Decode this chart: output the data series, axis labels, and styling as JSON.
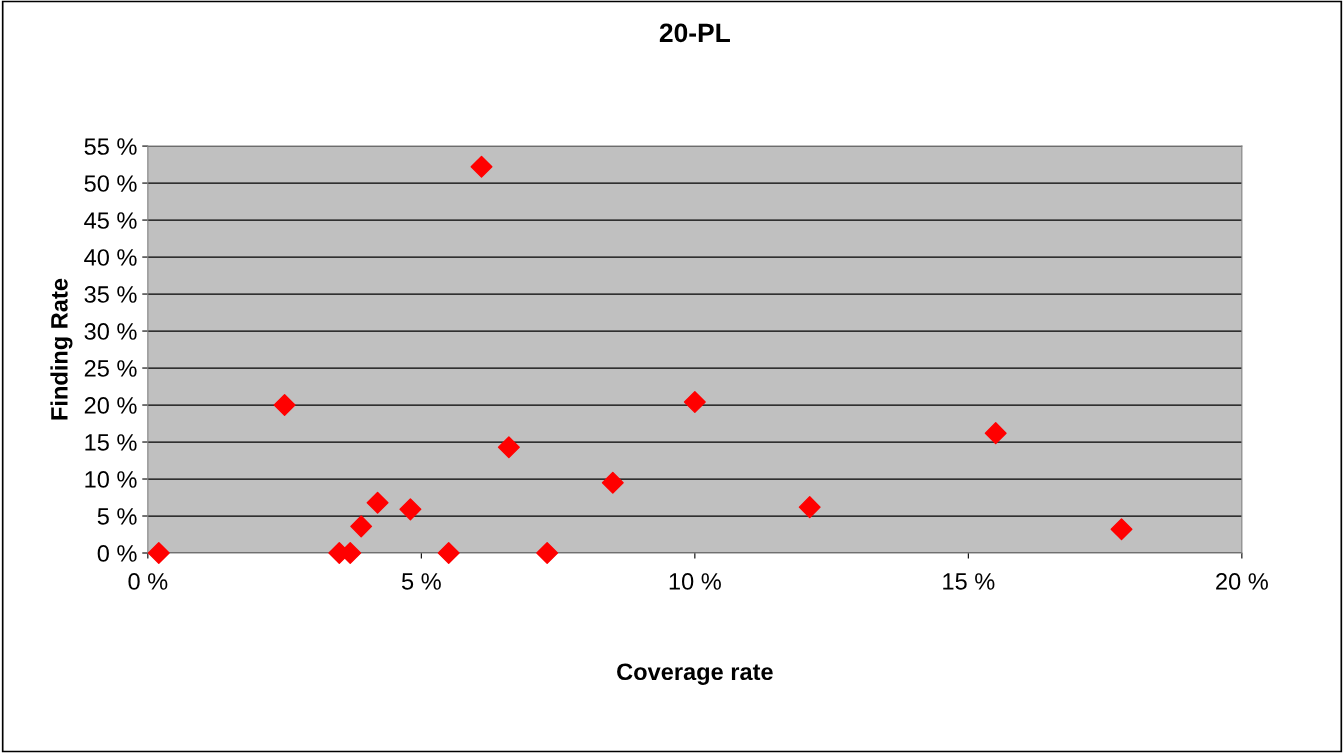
{
  "chart_data": {
    "type": "scatter",
    "title": "20-PL",
    "xlabel": "Coverage rate",
    "ylabel": "Finding Rate",
    "x": [
      0.2,
      2.5,
      3.5,
      3.7,
      3.9,
      4.2,
      4.8,
      5.5,
      6.1,
      6.6,
      7.3,
      8.5,
      10.0,
      12.1,
      15.5,
      17.8
    ],
    "series": [
      {
        "color": "#ff0000",
        "values": [
          0,
          20.0,
          0,
          0,
          3.6,
          6.8,
          5.9,
          0,
          52.2,
          14.3,
          0,
          9.5,
          20.4,
          6.2,
          16.2,
          3.2
        ]
      }
    ],
    "marker": "diamond",
    "grid": "y",
    "legend": false,
    "xlim": [
      0,
      20
    ],
    "xticks": [
      {
        "value": 0,
        "label": "0 %"
      },
      {
        "value": 5,
        "label": "5 %"
      },
      {
        "value": 10,
        "label": "10 %"
      },
      {
        "value": 15,
        "label": "15 %"
      },
      {
        "value": 20,
        "label": "20 %"
      }
    ],
    "ylim": [
      0,
      55
    ],
    "yticks": [
      {
        "value": 0,
        "label": "0 %"
      },
      {
        "value": 5,
        "label": "5 %"
      },
      {
        "value": 10,
        "label": "10 %"
      },
      {
        "value": 15,
        "label": "15 %"
      },
      {
        "value": 20,
        "label": "20 %"
      },
      {
        "value": 25,
        "label": "25 %"
      },
      {
        "value": 30,
        "label": "30 %"
      },
      {
        "value": 35,
        "label": "35 %"
      },
      {
        "value": 40,
        "label": "40 %"
      },
      {
        "value": 45,
        "label": "45 %"
      },
      {
        "value": 50,
        "label": "50 %"
      },
      {
        "value": 55,
        "label": "55 %"
      }
    ]
  }
}
